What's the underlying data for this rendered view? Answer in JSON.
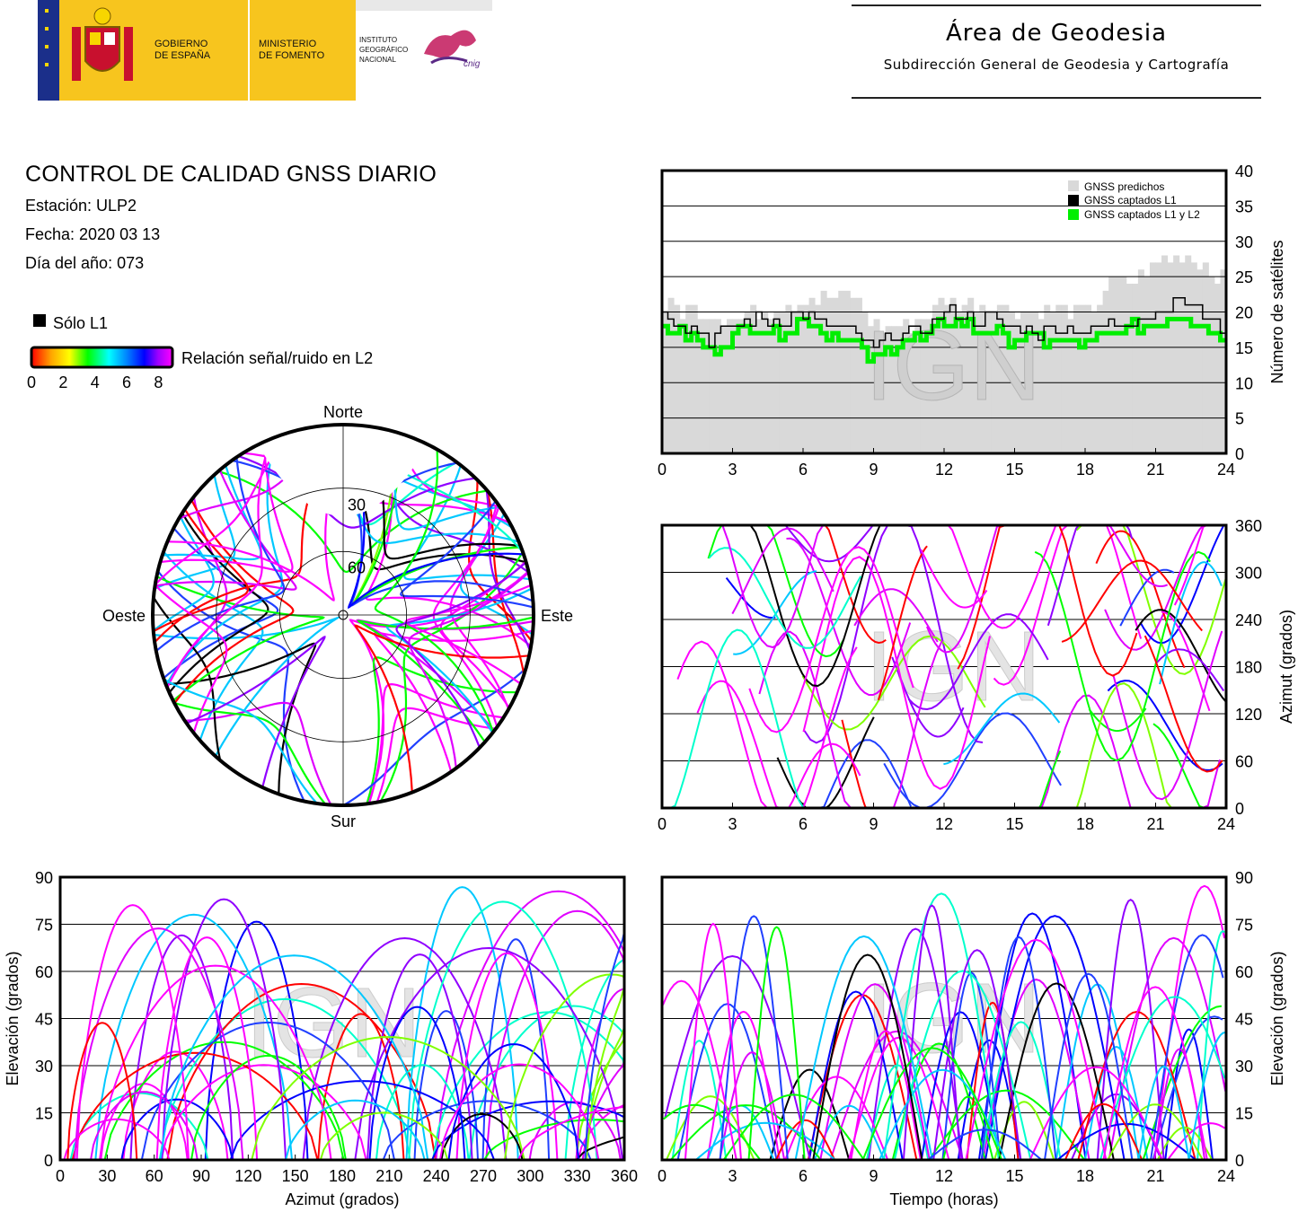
{
  "header": {
    "gov_line1": "GOBIERNO",
    "gov_line2": "DE ESPAÑA",
    "min_line1": "MINISTERIO",
    "min_line2": "DE FOMENTO",
    "inst_line1": "INSTITUTO",
    "inst_line2": "GEOGRÁFICO",
    "inst_line3": "NACIONAL",
    "cnig": "cnig",
    "area_title": "Área de Geodesia",
    "area_subtitle": "Subdirección General de Geodesia y Cartografía"
  },
  "info": {
    "title": "CONTROL DE CALIDAD GNSS DIARIO",
    "station": "Estación: ULP2",
    "date": "Fecha: 2020 03 13",
    "doy": "Día del año: 073"
  },
  "legend": {
    "l1_only": "Sólo L1",
    "snr_label": "Relación señal/ruido en L2",
    "snr_ticks": [
      "0",
      "2",
      "4",
      "6",
      "8"
    ]
  },
  "watermark": "IGN",
  "colors": {
    "predicted": "#d9d9d9",
    "l1": "#000000",
    "l1l2": "#00ee00",
    "snr_scale": [
      "#ff0000",
      "#ffa500",
      "#ffff00",
      "#00ff00",
      "#00ffff",
      "#0080ff",
      "#0000ff",
      "#a000ff",
      "#ff00ff"
    ]
  },
  "chart_data": [
    {
      "type": "polar-skyplot",
      "labels": {
        "north": "Norte",
        "south": "Sur",
        "east": "Este",
        "west": "Oeste"
      },
      "ring_labels": [
        "30",
        "60"
      ],
      "rings": [
        30,
        60
      ],
      "note_tracks": "satellite tracks coloured by L2 SNR"
    },
    {
      "type": "area",
      "legend": [
        "GNSS predichos",
        "GNSS captados L1",
        "GNSS captados L1 y L2"
      ],
      "ylabel": "Número de satélites",
      "x_ticks": [
        "0",
        "3",
        "6",
        "9",
        "12",
        "15",
        "18",
        "21",
        "24"
      ],
      "y_ticks": [
        "0",
        "5",
        "10",
        "15",
        "20",
        "25",
        "30",
        "35",
        "40"
      ],
      "xlim": [
        0,
        24
      ],
      "ylim": [
        0,
        40
      ],
      "x": [
        0,
        1,
        2,
        3,
        4,
        5,
        6,
        7,
        8,
        9,
        10,
        11,
        12,
        13,
        14,
        15,
        16,
        17,
        18,
        19,
        20,
        21,
        22,
        23,
        24
      ],
      "series": [
        {
          "name": "GNSS predichos",
          "values": [
            21,
            20,
            20,
            19,
            20,
            21,
            22,
            22,
            22,
            18,
            18,
            19,
            22,
            21,
            21,
            20,
            20,
            20,
            20,
            24,
            24,
            27,
            28,
            27,
            24
          ]
        },
        {
          "name": "GNSS captados L1",
          "values": [
            20,
            18,
            16,
            18,
            19,
            19,
            20,
            18,
            17,
            15,
            17,
            17,
            20,
            19,
            19,
            18,
            17,
            18,
            17,
            18,
            19,
            20,
            22,
            20,
            17
          ]
        },
        {
          "name": "GNSS captados L1 y L2",
          "values": [
            18,
            17,
            14,
            17,
            18,
            17,
            19,
            17,
            16,
            13,
            16,
            16,
            19,
            18,
            17,
            16,
            16,
            16,
            15,
            17,
            18,
            18,
            20,
            18,
            16
          ]
        }
      ]
    },
    {
      "type": "scatter",
      "ylabel": "Azimut (grados)",
      "x_ticks": [
        "0",
        "3",
        "6",
        "9",
        "12",
        "15",
        "18",
        "21",
        "24"
      ],
      "y_ticks": [
        "0",
        "60",
        "120",
        "180",
        "240",
        "300",
        "360"
      ],
      "xlim": [
        0,
        24
      ],
      "ylim": [
        0,
        360
      ]
    },
    {
      "type": "scatter",
      "xlabel": "Azimut (grados)",
      "ylabel": "Elevación (grados)",
      "x_ticks": [
        "0",
        "30",
        "60",
        "90",
        "120",
        "150",
        "180",
        "210",
        "240",
        "270",
        "300",
        "330",
        "360"
      ],
      "y_ticks": [
        "0",
        "15",
        "30",
        "45",
        "60",
        "75",
        "90"
      ],
      "xlim": [
        0,
        360
      ],
      "ylim": [
        0,
        90
      ]
    },
    {
      "type": "scatter",
      "xlabel": "Tiempo (horas)",
      "ylabel": "Elevación (grados)",
      "x_ticks": [
        "0",
        "3",
        "6",
        "9",
        "12",
        "15",
        "18",
        "21",
        "24"
      ],
      "y_ticks": [
        "0",
        "15",
        "30",
        "45",
        "60",
        "75",
        "90"
      ],
      "xlim": [
        0,
        24
      ],
      "ylim": [
        0,
        90
      ]
    }
  ]
}
